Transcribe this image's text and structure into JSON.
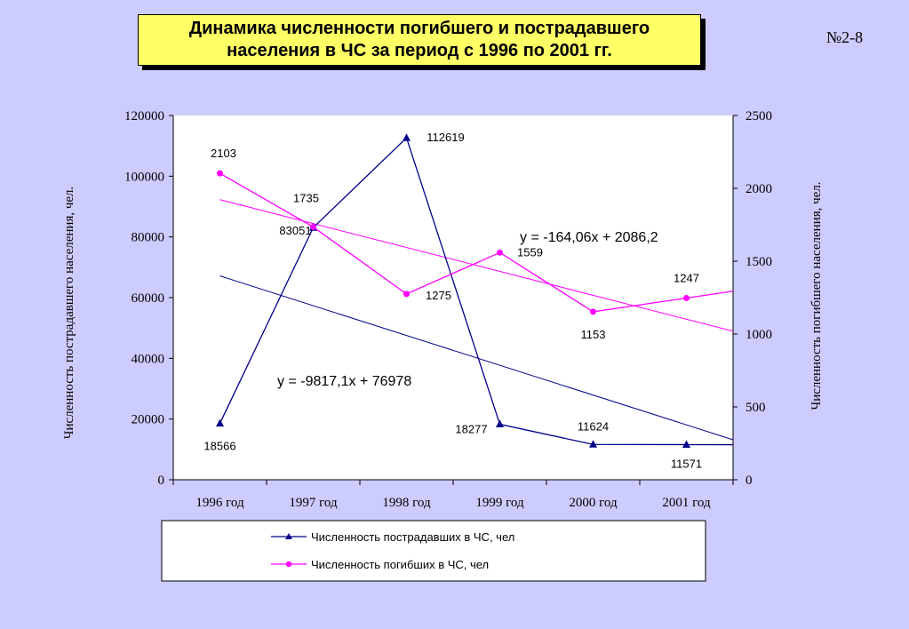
{
  "slide": {
    "title_line1": "Динамика численности погибшего и пострадавшего",
    "title_line2": "населения в ЧС за период с 1996 по 2001 гг.",
    "number": "№2-8"
  },
  "colors": {
    "background": "#ccccff",
    "title_bg": "#ffff66",
    "series_injured": "#00008b",
    "series_dead": "#ff00ff",
    "plot_bg": "#ffffff"
  },
  "chart_data": {
    "type": "line",
    "categories": [
      "1996 год",
      "1997 год",
      "1998 год",
      "1999 год",
      "2000 год",
      "2001 год"
    ],
    "ylabel": "Численность пострадавшего населения, чел.",
    "y2label": "Численность погибшего населения, чел.",
    "ylim": [
      0,
      120000
    ],
    "y2lim": [
      0,
      2500
    ],
    "yticks": [
      "0",
      "20000",
      "40000",
      "60000",
      "80000",
      "100000",
      "120000"
    ],
    "y2ticks": [
      "0",
      "500",
      "1000",
      "1500",
      "2000",
      "2500"
    ],
    "grid": false,
    "legend_position": "bottom",
    "series": [
      {
        "name": "Численность пострадавших в ЧС, чел",
        "axis": "left",
        "marker": "triangle",
        "values": [
          18566,
          83051,
          112619,
          18277,
          11624,
          11571
        ],
        "labels": [
          "18566",
          "83051",
          "112619",
          "18277",
          "11624",
          "11571"
        ],
        "trendline": {
          "equation": "y = -9817,1x + 76978",
          "slope": -9817.1,
          "intercept": 76978
        }
      },
      {
        "name": "Численность погибших в ЧС, чел",
        "axis": "right",
        "marker": "circle",
        "values": [
          2103,
          1735,
          1275,
          1559,
          1153,
          1247
        ],
        "labels": [
          "2103",
          "1735",
          "1275",
          "1559",
          "1153",
          "1247"
        ],
        "trendline": {
          "equation": "y = -164,06x + 2086,2",
          "slope": -164.06,
          "intercept": 2086.2
        }
      }
    ]
  }
}
